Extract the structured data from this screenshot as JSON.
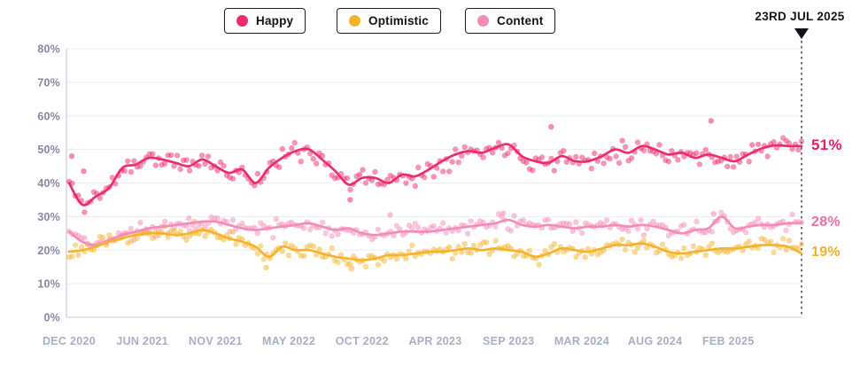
{
  "page": {
    "background": "#ffffff"
  },
  "annotation": {
    "date_label": "23RD JUL 2025"
  },
  "legend": [
    {
      "label": "Happy",
      "color": "#ef2a6e"
    },
    {
      "label": "Optimistic",
      "color": "#f6b32a"
    },
    {
      "label": "Content",
      "color": "#f58bb8"
    }
  ],
  "chart_data": {
    "type": "scatter",
    "title": "",
    "xlabel": "",
    "ylabel": "",
    "ylim": [
      0,
      80
    ],
    "grid": "horizontal",
    "legend_position": "top",
    "y_tick_labels": [
      "0%",
      "10%",
      "20%",
      "30%",
      "40%",
      "50%",
      "60%",
      "70%",
      "80%"
    ],
    "x_tick_labels": [
      "DEC 2020",
      "JUN 2021",
      "NOV 2021",
      "MAY 2022",
      "OCT 2022",
      "APR 2023",
      "SEP 2023",
      "MAR 2024",
      "AUG 2024",
      "FEB 2025"
    ],
    "x_range_note": "weekly survey points from DEC 2020 to 23 JUL 2025, smoothed trend line per series",
    "end_marker_date": "23RD JUL 2025",
    "series": [
      {
        "name": "Content",
        "color": "#f58bb8",
        "label_color": "#f06ba7",
        "end_label": "28%",
        "end_value": 28,
        "trend_interval": "monthly",
        "trend": [
          25.5,
          22.5,
          21.5,
          23,
          24.5,
          25.5,
          26.5,
          27,
          27.5,
          28,
          28.5,
          28.5,
          27.5,
          26.5,
          26,
          26.5,
          27,
          27.5,
          28,
          27,
          26,
          26.5,
          25,
          24.5,
          25,
          25.5,
          25.5,
          25.5,
          26,
          26.5,
          27,
          27.5,
          28,
          29,
          27.5,
          27,
          27.5,
          27,
          26.5,
          27,
          27,
          27.5,
          27,
          27.5,
          27,
          26,
          25,
          26,
          26.5,
          30,
          26.5,
          27,
          27.5,
          27.5,
          28,
          28
        ],
        "outliers": [
          [
            9.0,
            29.5
          ],
          [
            24.1,
            30.5
          ],
          [
            32.6,
            31
          ],
          [
            48.4,
            30.8
          ]
        ],
        "scatter_jitter_pct": 1.7
      },
      {
        "name": "Optimistic",
        "color": "#f6b32a",
        "label_color": "#f5ae25",
        "end_label": "19%",
        "end_value": 19,
        "trend_interval": "monthly",
        "trend": [
          19.5,
          20,
          21,
          22.5,
          23.5,
          24.5,
          25,
          25,
          24.5,
          25,
          26,
          25,
          23.5,
          22.5,
          21,
          18,
          21,
          20,
          20,
          19,
          18,
          17.5,
          17,
          17.5,
          18.5,
          18.5,
          19,
          19.5,
          19.5,
          20,
          20.5,
          20,
          20.5,
          20,
          19.5,
          18,
          19,
          20.5,
          20,
          19.5,
          20.5,
          21.5,
          21.5,
          22,
          21,
          19.5,
          19,
          19.5,
          20,
          20.5,
          20.5,
          21,
          21.5,
          21.5,
          21,
          19
        ],
        "outliers": [
          [
            9.4,
            28.5
          ],
          [
            14.8,
            14.8
          ],
          [
            21.2,
            14.5
          ]
        ],
        "scatter_jitter_pct": 1.7
      },
      {
        "name": "Happy",
        "color": "#ef2a6e",
        "label_color": "#ee1a64",
        "end_label": "51%",
        "end_value": 51,
        "trend_interval": "monthly",
        "trend": [
          40,
          33.5,
          36,
          38.5,
          44.5,
          45.5,
          47.5,
          47,
          46,
          45,
          47,
          45,
          43,
          44,
          40,
          44.5,
          47.5,
          49.5,
          50,
          47,
          43.5,
          39.5,
          41.5,
          41.5,
          40,
          42.5,
          42,
          44,
          46.5,
          48.5,
          49.5,
          49,
          50.5,
          51.5,
          48,
          46.5,
          46,
          48,
          46.5,
          46.5,
          48,
          50,
          49,
          51,
          50,
          48.5,
          49,
          47.5,
          48.5,
          47.5,
          46.5,
          48.5,
          50.3,
          51.2,
          51,
          51
        ],
        "outliers": [
          [
            0.2,
            48
          ],
          [
            1.1,
            43.5
          ],
          [
            21.1,
            35
          ],
          [
            36.2,
            56.7
          ],
          [
            48.2,
            58.5
          ]
        ],
        "scatter_jitter_pct": 2.2
      }
    ],
    "scatter_points_per_series": 238
  }
}
